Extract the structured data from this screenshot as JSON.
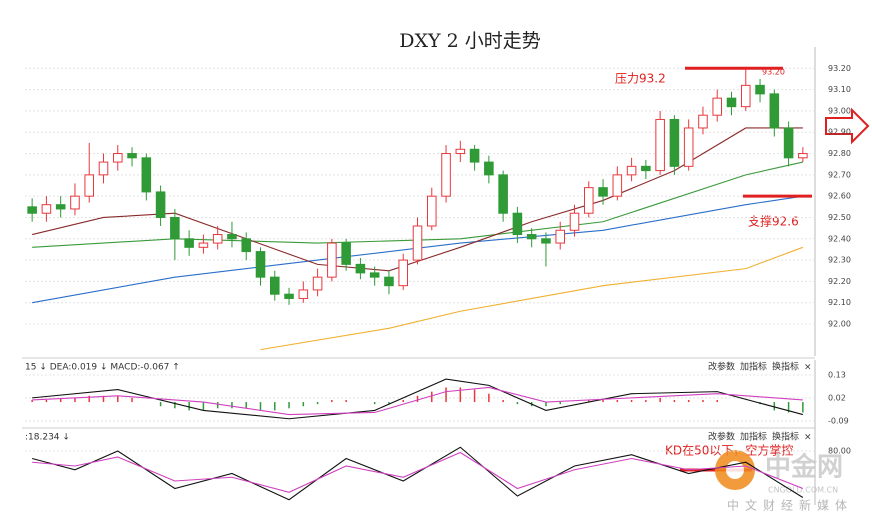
{
  "chart_data": [
    {
      "type": "candlestick",
      "title": "DXY 2 小时走势",
      "open": [
        92.55,
        92.52,
        92.56,
        92.54,
        92.6,
        92.7,
        92.76,
        92.8,
        92.78,
        92.62,
        92.5,
        92.4,
        92.36,
        92.38,
        92.42,
        92.4,
        92.34,
        92.22,
        92.14,
        92.12,
        92.16,
        92.22,
        92.38,
        92.28,
        92.24,
        92.22,
        92.18,
        92.3,
        92.46,
        92.6,
        92.8,
        92.82,
        92.76,
        92.7,
        92.52,
        92.42,
        92.4,
        92.38,
        92.44,
        92.52,
        92.64,
        92.6,
        92.7,
        92.74,
        92.72,
        92.96,
        92.74,
        92.92,
        92.98,
        93.06,
        93.02,
        93.12,
        93.08,
        92.92,
        92.78
      ],
      "high": [
        92.59,
        92.6,
        92.6,
        92.66,
        92.85,
        92.8,
        92.84,
        92.83,
        92.8,
        92.65,
        92.54,
        92.44,
        92.42,
        92.46,
        92.48,
        92.43,
        92.36,
        92.25,
        92.17,
        92.2,
        92.26,
        92.4,
        92.4,
        92.31,
        92.27,
        92.25,
        92.33,
        92.5,
        92.64,
        92.84,
        92.86,
        92.84,
        92.79,
        92.72,
        92.55,
        92.45,
        92.43,
        92.48,
        92.56,
        92.67,
        92.68,
        92.74,
        92.78,
        92.77,
        93.0,
        92.98,
        92.96,
        93.02,
        93.1,
        93.09,
        93.2,
        93.15,
        93.1,
        92.95,
        92.83
      ],
      "low": [
        92.48,
        92.48,
        92.5,
        92.51,
        92.57,
        92.66,
        92.72,
        92.74,
        92.58,
        92.46,
        92.3,
        92.32,
        92.33,
        92.35,
        92.36,
        92.3,
        92.18,
        92.11,
        92.09,
        92.1,
        92.13,
        92.2,
        92.25,
        92.21,
        92.18,
        92.14,
        92.16,
        92.28,
        92.44,
        92.57,
        92.76,
        92.72,
        92.66,
        92.48,
        92.38,
        92.36,
        92.27,
        92.35,
        92.41,
        92.5,
        92.56,
        92.58,
        92.67,
        92.68,
        92.7,
        92.7,
        92.72,
        92.89,
        92.95,
        92.98,
        93.0,
        93.04,
        92.88,
        92.74,
        92.76
      ],
      "close": [
        92.52,
        92.56,
        92.54,
        92.6,
        92.7,
        92.76,
        92.8,
        92.78,
        92.62,
        92.5,
        92.4,
        92.36,
        92.38,
        92.42,
        92.4,
        92.34,
        92.22,
        92.14,
        92.12,
        92.16,
        92.22,
        92.38,
        92.28,
        92.24,
        92.22,
        92.18,
        92.3,
        92.46,
        92.6,
        92.8,
        92.82,
        92.76,
        92.7,
        92.52,
        92.42,
        92.4,
        92.38,
        92.44,
        92.52,
        92.64,
        92.6,
        92.7,
        92.74,
        92.72,
        92.96,
        92.74,
        92.92,
        92.98,
        93.06,
        93.02,
        93.12,
        93.08,
        92.92,
        92.78,
        92.8
      ],
      "up_color": "#e8383d",
      "down_color": "#2f9a36",
      "lines": [
        {
          "color": "#2a6fc9",
          "x": [
            0,
            10,
            20,
            30,
            40,
            50,
            54
          ],
          "values": [
            92.1,
            92.22,
            92.3,
            92.38,
            92.44,
            92.56,
            92.6
          ]
        },
        {
          "color": "#3a9a3a",
          "x": [
            0,
            10,
            20,
            30,
            40,
            50,
            54
          ],
          "values": [
            92.36,
            92.4,
            92.38,
            92.4,
            92.48,
            92.7,
            92.76
          ]
        },
        {
          "color": "#f0b030",
          "x": [
            16,
            25,
            30,
            40,
            50,
            54
          ],
          "values": [
            91.88,
            91.98,
            92.06,
            92.18,
            92.26,
            92.36
          ]
        },
        {
          "color": "#8a2a2a",
          "x": [
            0,
            5,
            10,
            15,
            20,
            25,
            30,
            35,
            40,
            45,
            50,
            54
          ],
          "values": [
            92.42,
            92.5,
            92.52,
            92.4,
            92.28,
            92.25,
            92.36,
            92.48,
            92.58,
            92.72,
            92.92,
            92.92
          ]
        }
      ],
      "ylim": [
        91.85,
        93.3
      ],
      "yticks": [
        {
          "value": 93.2,
          "label": "93.20"
        },
        {
          "value": 93.1,
          "label": "93.10"
        },
        {
          "value": 93.0,
          "label": "93.00"
        },
        {
          "value": 92.9,
          "label": "92.90"
        },
        {
          "value": 92.8,
          "label": "92.80"
        },
        {
          "value": 92.7,
          "label": "92.70"
        },
        {
          "value": 92.6,
          "label": "92.60"
        },
        {
          "value": 92.5,
          "label": "92.50"
        },
        {
          "value": 92.4,
          "label": "92.40"
        },
        {
          "value": 92.3,
          "label": "92.30"
        },
        {
          "value": 92.2,
          "label": "92.20"
        },
        {
          "value": 92.1,
          "label": "92.10"
        },
        {
          "value": 92.0,
          "label": "92.00"
        }
      ],
      "grid": true,
      "resistance": 93.2,
      "support": 92.6,
      "annotations": [
        "压力93.2",
        "支撑92.6",
        "93.20"
      ]
    },
    {
      "type": "macd",
      "header": "15 ↓ DEA:0.019 ↓ MACD:-0.067 ↑",
      "toolbar": [
        "改参数",
        "加指标",
        "换指标",
        "×"
      ],
      "values": [
        0.01,
        0.01,
        0.02,
        0.02,
        0.03,
        0.03,
        0.03,
        0.02,
        0,
        -0.02,
        -0.03,
        -0.04,
        -0.04,
        -0.03,
        -0.03,
        -0.03,
        -0.04,
        -0.04,
        -0.03,
        -0.02,
        -0.01,
        0.01,
        0.01,
        0,
        -0.01,
        -0.01,
        0.01,
        0.03,
        0.05,
        0.07,
        0.07,
        0.06,
        0.04,
        0.01,
        -0.01,
        -0.02,
        -0.02,
        -0.01,
        0,
        0.01,
        0.01,
        0.01,
        0.01,
        0.01,
        0.02,
        0.01,
        0.01,
        0.01,
        0.01,
        0,
        0,
        -0.01,
        -0.04,
        -0.05,
        -0.05
      ],
      "up_color": "#e8383d",
      "down_color": "#2f9a36",
      "lines": [
        {
          "color": "#111111",
          "x": [
            0,
            6,
            12,
            18,
            24,
            29,
            32,
            36,
            42,
            48,
            54
          ],
          "values": [
            0.02,
            0.06,
            -0.04,
            -0.08,
            -0.04,
            0.11,
            0.08,
            -0.04,
            0.04,
            0.05,
            -0.06
          ]
        },
        {
          "color": "#d040c0",
          "x": [
            0,
            6,
            12,
            18,
            24,
            29,
            32,
            36,
            42,
            48,
            54
          ],
          "values": [
            0.01,
            0.03,
            0,
            -0.06,
            -0.05,
            0.05,
            0.07,
            0,
            0.02,
            0.04,
            0.01
          ]
        }
      ],
      "ylim": [
        -0.11,
        0.17
      ],
      "yticks": [
        0.13,
        0.02,
        -0.09
      ]
    },
    {
      "type": "kd",
      "header": ":18.234 ↓",
      "toolbar": [
        "改参数",
        "加指标",
        "换指标",
        "×"
      ],
      "lines": [
        {
          "color": "#111111",
          "x": [
            0,
            3,
            6,
            10,
            14,
            18,
            22,
            26,
            30,
            34,
            38,
            42,
            46,
            50,
            54
          ],
          "values": [
            70,
            55,
            80,
            30,
            50,
            15,
            70,
            40,
            85,
            20,
            60,
            75,
            50,
            65,
            18
          ]
        },
        {
          "color": "#d040c0",
          "x": [
            0,
            3,
            6,
            10,
            14,
            18,
            22,
            26,
            30,
            34,
            38,
            42,
            46,
            50,
            54
          ],
          "values": [
            65,
            60,
            72,
            40,
            45,
            25,
            60,
            45,
            78,
            30,
            55,
            70,
            55,
            60,
            30
          ]
        }
      ],
      "ylim": [
        0,
        100
      ],
      "yticks": [
        {
          "value": 80,
          "label": "80.00"
        }
      ],
      "annotations": [
        "KD在50以下，空方掌控"
      ]
    }
  ],
  "watermark": {
    "brand": "中金网",
    "site": "CNGOLD.COM.CN",
    "slogan": "中文财经新媒体"
  }
}
